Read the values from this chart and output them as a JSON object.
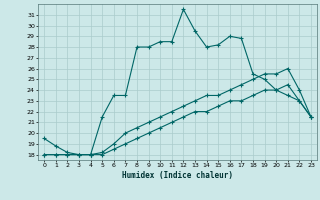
{
  "title": "",
  "xlabel": "Humidex (Indice chaleur)",
  "ylabel": "",
  "bg_color": "#cce8e8",
  "grid_color": "#aacccc",
  "line_color": "#006666",
  "x_ticks": [
    0,
    1,
    2,
    3,
    4,
    5,
    6,
    7,
    8,
    9,
    10,
    11,
    12,
    13,
    14,
    15,
    16,
    17,
    18,
    19,
    20,
    21,
    22,
    23
  ],
  "y_ticks": [
    18,
    19,
    20,
    21,
    22,
    23,
    24,
    25,
    26,
    27,
    28,
    29,
    30,
    31
  ],
  "ylim": [
    17.5,
    32.0
  ],
  "xlim": [
    -0.5,
    23.5
  ],
  "line1_x": [
    0,
    1,
    2,
    3,
    4,
    5,
    6,
    7,
    8,
    9,
    10,
    11,
    12,
    13,
    14,
    15,
    16,
    17,
    18,
    19,
    20,
    21,
    22,
    23
  ],
  "line1_y": [
    19.5,
    18.8,
    18.2,
    18.0,
    18.0,
    21.5,
    23.5,
    23.5,
    28.0,
    28.0,
    28.5,
    28.5,
    31.5,
    29.5,
    28.0,
    28.2,
    29.0,
    28.8,
    25.5,
    25.0,
    24.0,
    23.5,
    23.0,
    21.5
  ],
  "line2_x": [
    0,
    1,
    2,
    3,
    4,
    5,
    6,
    7,
    8,
    9,
    10,
    11,
    12,
    13,
    14,
    15,
    16,
    17,
    18,
    19,
    20,
    21,
    22,
    23
  ],
  "line2_y": [
    18.0,
    18.0,
    18.0,
    18.0,
    18.0,
    18.2,
    19.0,
    20.0,
    20.5,
    21.0,
    21.5,
    22.0,
    22.5,
    23.0,
    23.5,
    23.5,
    24.0,
    24.5,
    25.0,
    25.5,
    25.5,
    26.0,
    24.0,
    21.5
  ],
  "line3_x": [
    0,
    1,
    2,
    3,
    4,
    5,
    6,
    7,
    8,
    9,
    10,
    11,
    12,
    13,
    14,
    15,
    16,
    17,
    18,
    19,
    20,
    21,
    22,
    23
  ],
  "line3_y": [
    18.0,
    18.0,
    18.0,
    18.0,
    18.0,
    18.0,
    18.5,
    19.0,
    19.5,
    20.0,
    20.5,
    21.0,
    21.5,
    22.0,
    22.0,
    22.5,
    23.0,
    23.0,
    23.5,
    24.0,
    24.0,
    24.5,
    23.0,
    21.5
  ]
}
